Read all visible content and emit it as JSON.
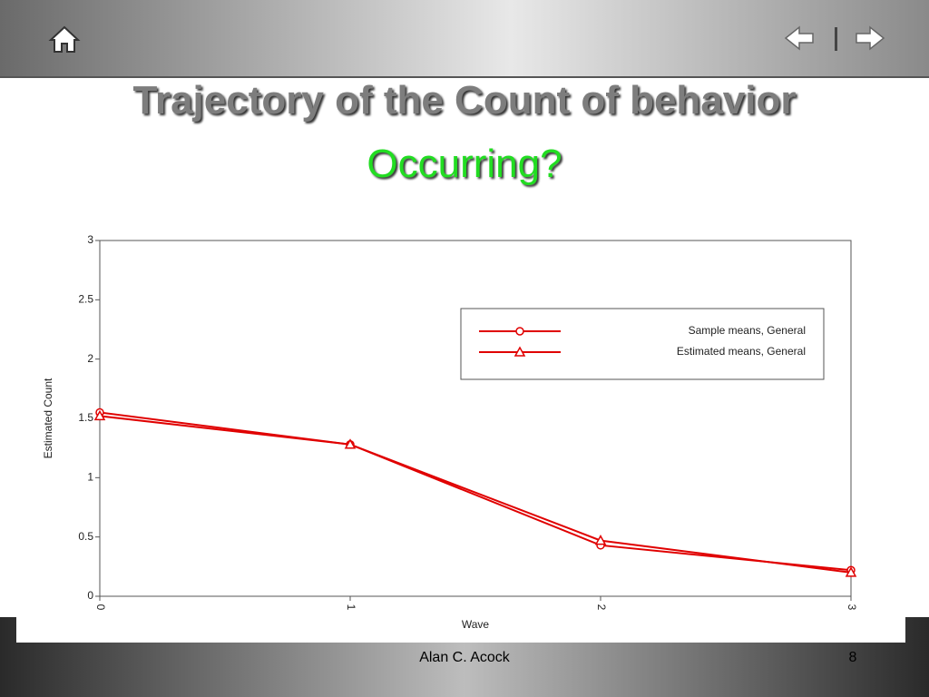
{
  "slide": {
    "title": "Trajectory of the Count of behavior",
    "title_highlight": "Occurring?",
    "footer": "Alan C. Acock",
    "page_number": "8"
  },
  "chart_data": {
    "type": "line",
    "x_label": "Wave",
    "y_label": "Estimated Count",
    "x": [
      0,
      1,
      2,
      3
    ],
    "series": [
      {
        "name": "Sample means, General",
        "color": "#e00000",
        "marker": "circle",
        "values": [
          1.55,
          1.28,
          0.43,
          0.22
        ]
      },
      {
        "name": "Estimated means, General",
        "color": "#e00000",
        "marker": "triangle",
        "values": [
          1.52,
          1.28,
          0.47,
          0.2
        ]
      }
    ],
    "xlim": [
      0,
      3
    ],
    "xticks": [
      0,
      1,
      2,
      3
    ],
    "ylim": [
      0,
      3
    ],
    "yticks": [
      0,
      0.5,
      1,
      1.5,
      2,
      2.5,
      3
    ],
    "grid": false,
    "legend": "upper-right"
  }
}
